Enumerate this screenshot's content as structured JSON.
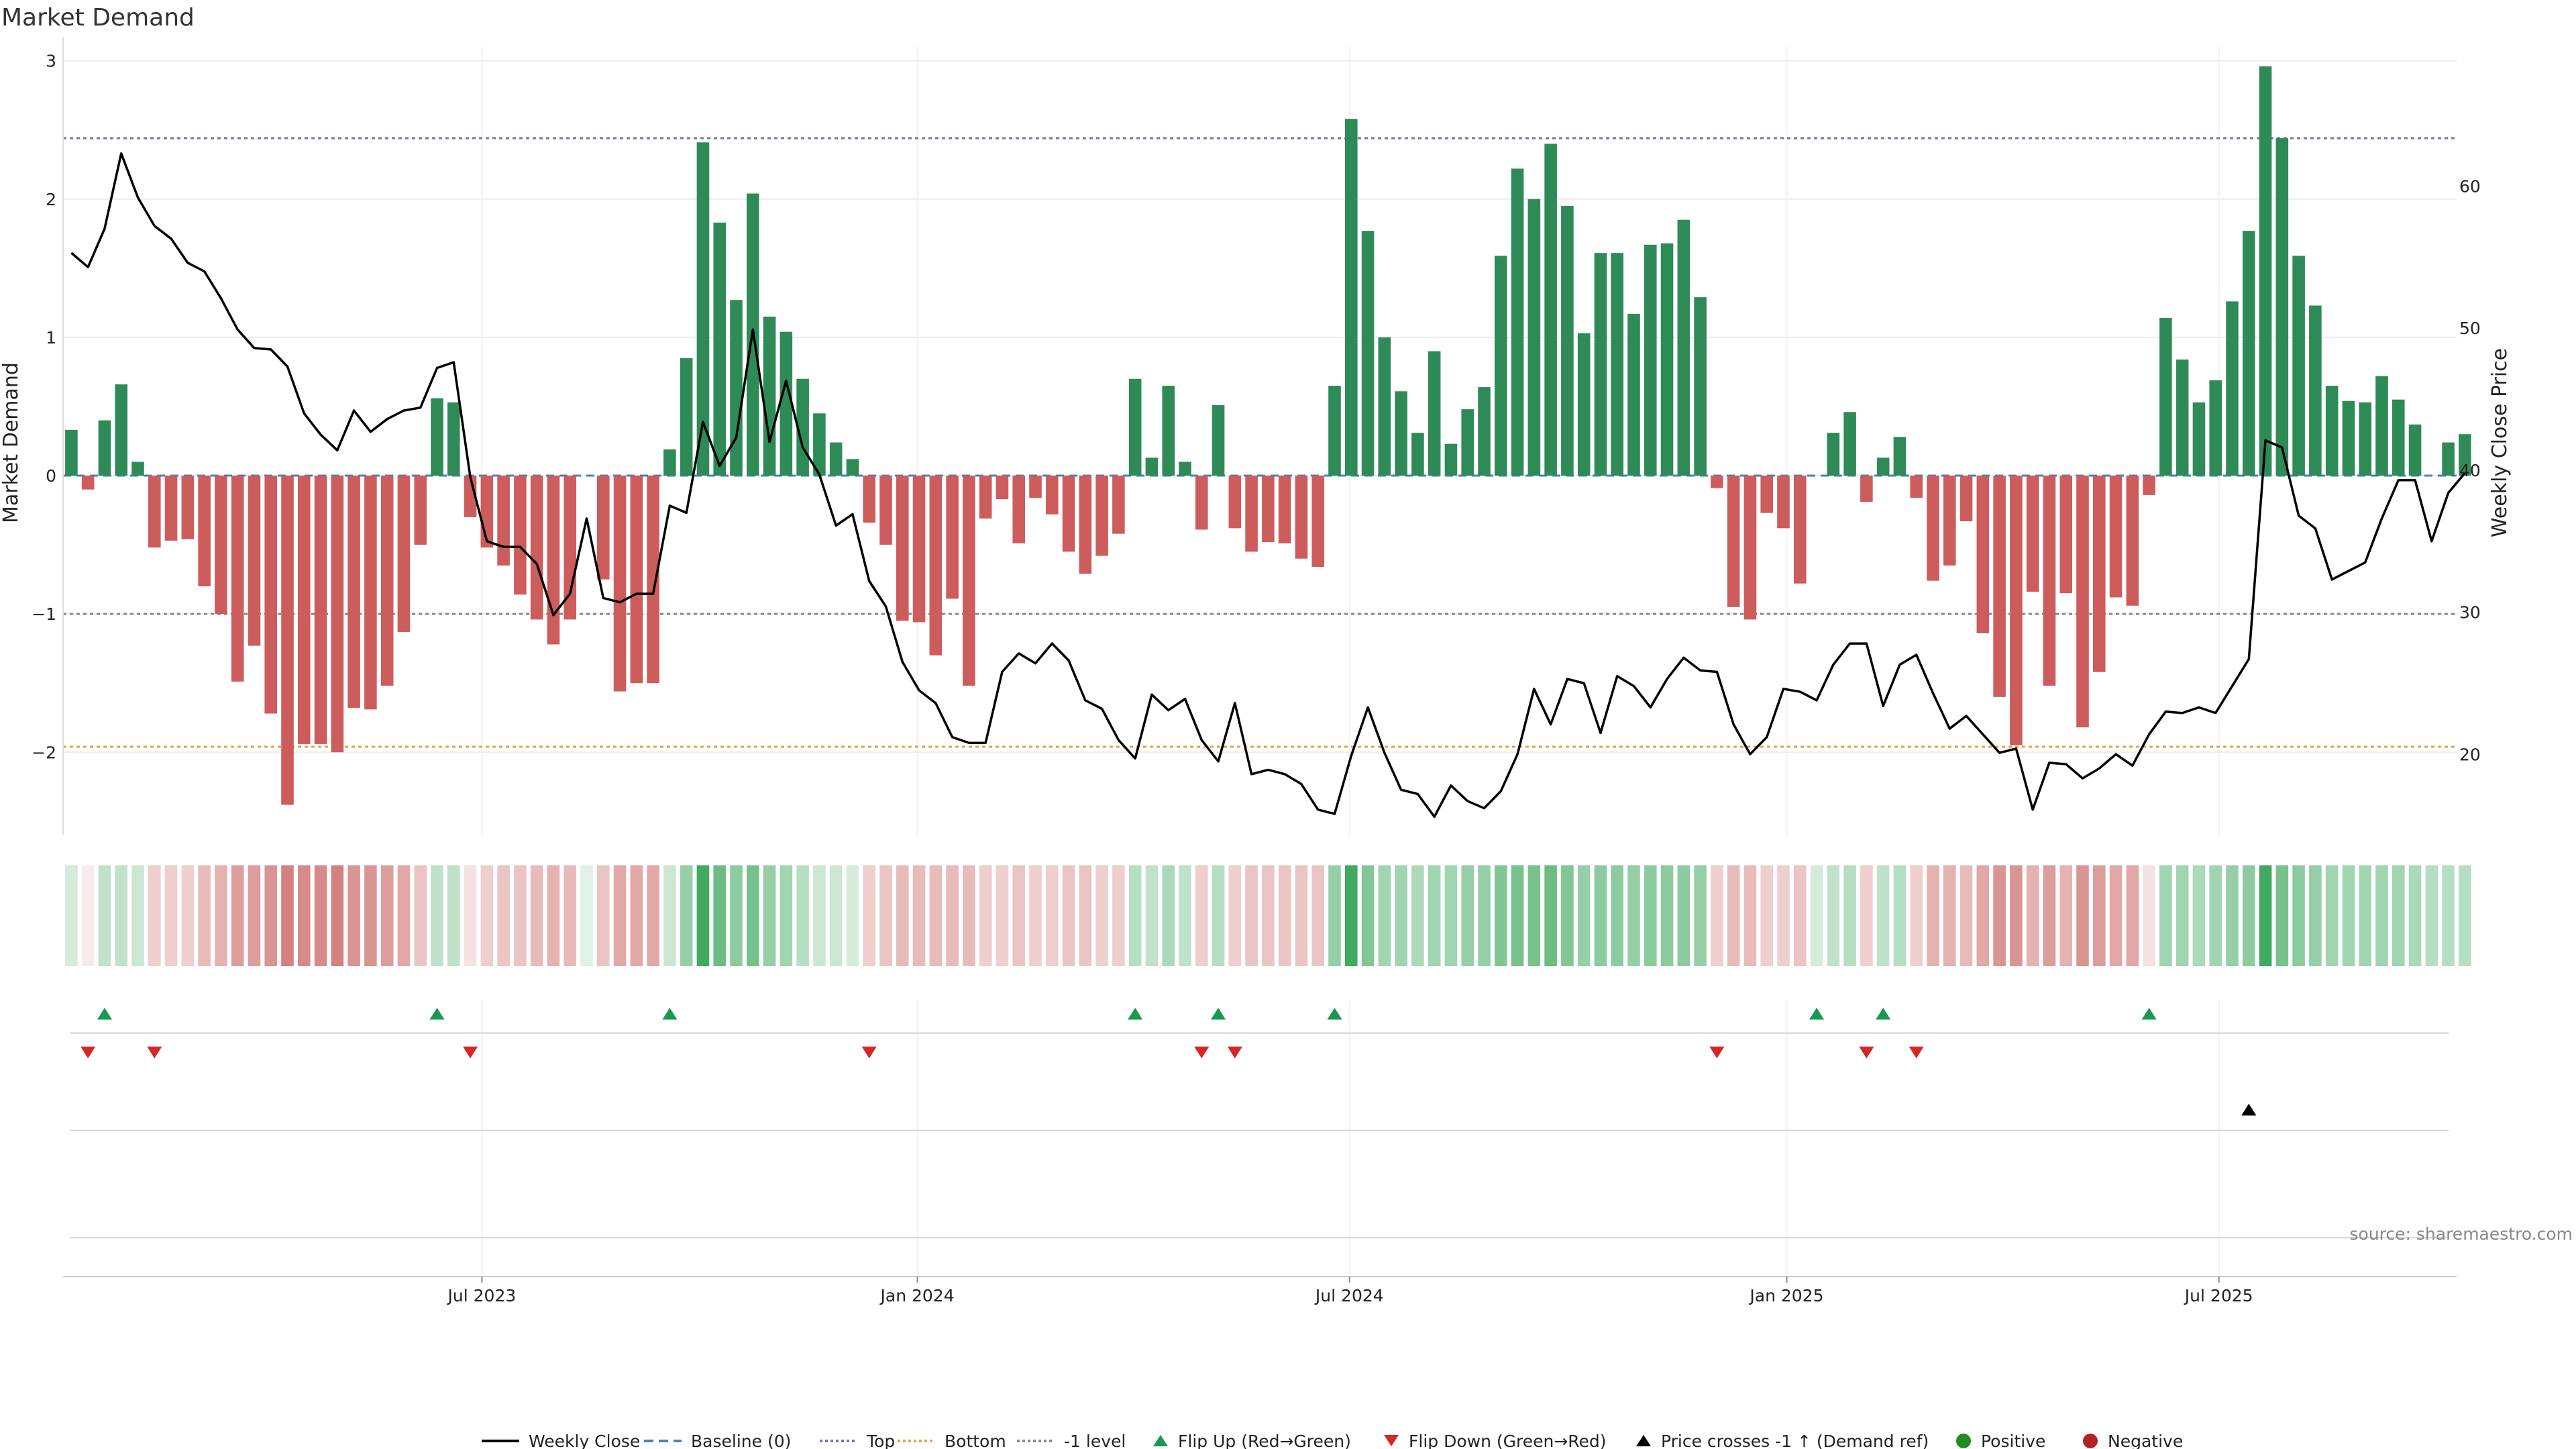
{
  "chart_data": {
    "title": "Market Demand",
    "type": "bar",
    "ylabel_left": "Market Demand",
    "ylabel_right": "Weekly Close Price",
    "ylim_left": [
      -2.6,
      3.1
    ],
    "ylim_right": [
      14.3,
      69.8
    ],
    "yticks_left": [
      -2,
      -1,
      0,
      1,
      2,
      3
    ],
    "ytick_labels_left": [
      "−2",
      "−1",
      "0",
      "1",
      "2",
      "3"
    ],
    "yticks_right": [
      20,
      30,
      40,
      50,
      60
    ],
    "ytick_labels_right": [
      "20",
      "30",
      "40",
      "50",
      "60"
    ],
    "reference_lines": [
      {
        "name": "Top",
        "value": 2.44,
        "color": "#7b6fb0"
      },
      {
        "name": "-1 level",
        "value": -1.0,
        "color": "#888888"
      },
      {
        "name": "Bottom",
        "value": -1.96,
        "color": "#e8a33d"
      }
    ],
    "x_start_date": "2023-01-02",
    "x_tick_labels": [
      "Jul 2023",
      "Jan 2024",
      "Jul 2024",
      "Jan 2025",
      "Jul 2025"
    ],
    "x_tick_weeks": [
      25.2,
      51.4,
      77.4,
      103.7,
      129.7
    ],
    "weeks": 144,
    "colors": {
      "positive": "#2e8b57",
      "negative": "#cd5c5c",
      "price": "#000000",
      "flip_up": "#1a9850",
      "flip_down": "#d62728",
      "cross": "#000000"
    },
    "demand_values": [
      0.33,
      -0.1,
      0.4,
      0.66,
      0.1,
      -0.52,
      -0.47,
      -0.46,
      -0.8,
      -1.0,
      -1.49,
      -1.23,
      -1.72,
      -2.38,
      -1.94,
      -1.94,
      -2.0,
      -1.68,
      -1.69,
      -1.52,
      -1.13,
      -0.5,
      0.56,
      0.53,
      -0.3,
      -0.52,
      -0.65,
      -0.86,
      -1.04,
      -1.22,
      -1.04,
      0.0,
      -0.75,
      -1.56,
      -1.5,
      -1.5,
      0.19,
      0.85,
      2.41,
      1.83,
      1.27,
      2.04,
      1.15,
      1.04,
      0.7,
      0.45,
      0.24,
      0.12,
      -0.34,
      -0.5,
      -1.05,
      -1.06,
      -1.3,
      -0.89,
      -1.52,
      -0.31,
      -0.17,
      -0.49,
      -0.16,
      -0.28,
      -0.55,
      -0.71,
      -0.58,
      -0.42,
      0.7,
      0.13,
      0.65,
      0.1,
      -0.39,
      0.51,
      -0.38,
      -0.55,
      -0.48,
      -0.49,
      -0.6,
      -0.66,
      0.65,
      2.58,
      1.77,
      1.0,
      0.61,
      0.31,
      0.9,
      0.23,
      0.48,
      0.64,
      1.59,
      2.22,
      2.0,
      2.4,
      1.95,
      1.03,
      1.61,
      1.61,
      1.17,
      1.67,
      1.68,
      1.85,
      1.29,
      -0.09,
      -0.95,
      -1.04,
      -0.27,
      -0.38,
      -0.78,
      0.0,
      0.31,
      0.46,
      -0.19,
      0.13,
      0.28,
      -0.16,
      -0.76,
      -0.65,
      -0.33,
      -1.14,
      -1.6,
      -1.95,
      -0.84,
      -1.52,
      -0.85,
      -1.82,
      -1.42,
      -0.88,
      -0.94,
      -0.14,
      1.14,
      0.84,
      0.53,
      0.69,
      1.26,
      1.77,
      2.96,
      2.44,
      1.59,
      1.23,
      0.65,
      0.54,
      0.53,
      0.72,
      0.55,
      0.37,
      0.0,
      0.24,
      0.3
    ],
    "price_values": [
      55.3,
      54.3,
      57.0,
      62.3,
      59.2,
      57.2,
      56.3,
      54.6,
      54.0,
      52.1,
      49.9,
      48.6,
      48.5,
      47.3,
      44.0,
      42.5,
      41.4,
      44.2,
      42.7,
      43.6,
      44.2,
      44.4,
      47.2,
      47.6,
      39.5,
      35.0,
      34.6,
      34.6,
      33.4,
      29.8,
      31.3,
      36.6,
      31.0,
      30.7,
      31.3,
      31.3,
      37.5,
      37.0,
      43.4,
      40.3,
      42.3,
      49.9,
      42.0,
      46.3,
      41.6,
      39.7,
      36.1,
      36.9,
      32.2,
      30.4,
      26.5,
      24.5,
      23.6,
      21.2,
      20.8,
      20.8,
      25.8,
      27.1,
      26.4,
      27.8,
      26.6,
      23.8,
      23.2,
      21.0,
      19.7,
      24.2,
      23.1,
      23.9,
      21.0,
      19.5,
      23.6,
      18.6,
      18.9,
      18.6,
      17.9,
      16.1,
      15.8,
      19.9,
      23.3,
      20.1,
      17.5,
      17.2,
      15.6,
      17.8,
      16.7,
      16.2,
      17.4,
      20.0,
      24.6,
      22.1,
      25.3,
      25.0,
      21.5,
      25.5,
      24.8,
      23.3,
      25.3,
      26.8,
      25.9,
      25.8,
      22.1,
      20.0,
      21.2,
      24.6,
      24.4,
      23.8,
      26.3,
      27.8,
      27.8,
      23.4,
      26.3,
      27.0,
      24.3,
      21.8,
      22.7,
      21.4,
      20.1,
      20.4,
      16.1,
      19.4,
      19.3,
      18.3,
      19.0,
      20.0,
      19.2,
      21.4,
      23.0,
      22.9,
      23.3,
      22.9,
      24.8,
      26.7,
      42.1,
      41.6,
      36.8,
      35.9,
      32.3,
      32.9,
      33.5,
      36.6,
      39.3,
      39.3,
      35.0,
      38.4,
      39.8
    ],
    "flip_up_weeks": [
      2,
      22,
      36,
      64,
      69,
      76,
      105,
      109,
      125
    ],
    "flip_down_weeks": [
      1,
      5,
      24,
      48,
      68,
      70,
      99,
      108,
      111
    ],
    "price_cross_weeks": [
      131
    ],
    "heat_intensity": [
      0.2,
      0.1,
      0.3,
      0.3,
      0.25,
      0.25,
      0.25,
      0.25,
      0.35,
      0.4,
      0.5,
      0.5,
      0.55,
      0.65,
      0.6,
      0.6,
      0.65,
      0.55,
      0.55,
      0.5,
      0.45,
      0.3,
      0.3,
      0.3,
      0.15,
      0.25,
      0.3,
      0.3,
      0.35,
      0.4,
      0.35,
      0.15,
      0.3,
      0.45,
      0.45,
      0.45,
      0.25,
      0.5,
      0.9,
      0.7,
      0.55,
      0.65,
      0.5,
      0.45,
      0.35,
      0.25,
      0.25,
      0.2,
      0.25,
      0.3,
      0.35,
      0.35,
      0.35,
      0.35,
      0.35,
      0.25,
      0.25,
      0.3,
      0.25,
      0.25,
      0.3,
      0.3,
      0.25,
      0.25,
      0.35,
      0.3,
      0.4,
      0.3,
      0.25,
      0.35,
      0.25,
      0.3,
      0.3,
      0.3,
      0.3,
      0.3,
      0.5,
      0.9,
      0.6,
      0.45,
      0.45,
      0.4,
      0.45,
      0.45,
      0.5,
      0.5,
      0.6,
      0.65,
      0.65,
      0.7,
      0.6,
      0.5,
      0.55,
      0.55,
      0.5,
      0.55,
      0.55,
      0.55,
      0.5,
      0.25,
      0.35,
      0.35,
      0.25,
      0.25,
      0.3,
      0.2,
      0.3,
      0.35,
      0.25,
      0.3,
      0.35,
      0.25,
      0.4,
      0.4,
      0.35,
      0.45,
      0.55,
      0.55,
      0.4,
      0.5,
      0.4,
      0.55,
      0.5,
      0.45,
      0.45,
      0.15,
      0.45,
      0.45,
      0.4,
      0.45,
      0.5,
      0.55,
      0.9,
      0.65,
      0.55,
      0.5,
      0.45,
      0.45,
      0.45,
      0.45,
      0.45,
      0.4,
      0.35,
      0.35,
      0.35
    ]
  },
  "legend": [
    {
      "label": "Weekly Close",
      "icon": "solid-line",
      "color": "#000000"
    },
    {
      "label": "Baseline (0)",
      "icon": "dashed-line",
      "color": "#4a7fc1"
    },
    {
      "label": "Top",
      "icon": "dotted-line",
      "color": "#7b6fb0"
    },
    {
      "label": "Bottom",
      "icon": "dotted-line",
      "color": "#e8a33d"
    },
    {
      "label": "-1 level",
      "icon": "dotted-line",
      "color": "#888888"
    },
    {
      "label": "Flip Up (Red→Green)",
      "icon": "triangle-up",
      "color": "#1a9850"
    },
    {
      "label": "Flip Down (Green→Red)",
      "icon": "triangle-down",
      "color": "#d62728"
    },
    {
      "label": "Price crosses -1 ↑ (Demand ref)",
      "icon": "triangle-up",
      "color": "#000000"
    },
    {
      "label": "Positive",
      "icon": "dot",
      "color": "#228b22"
    },
    {
      "label": "Negative",
      "icon": "dot",
      "color": "#b22222"
    }
  ],
  "source": "source: sharemaestro.com"
}
